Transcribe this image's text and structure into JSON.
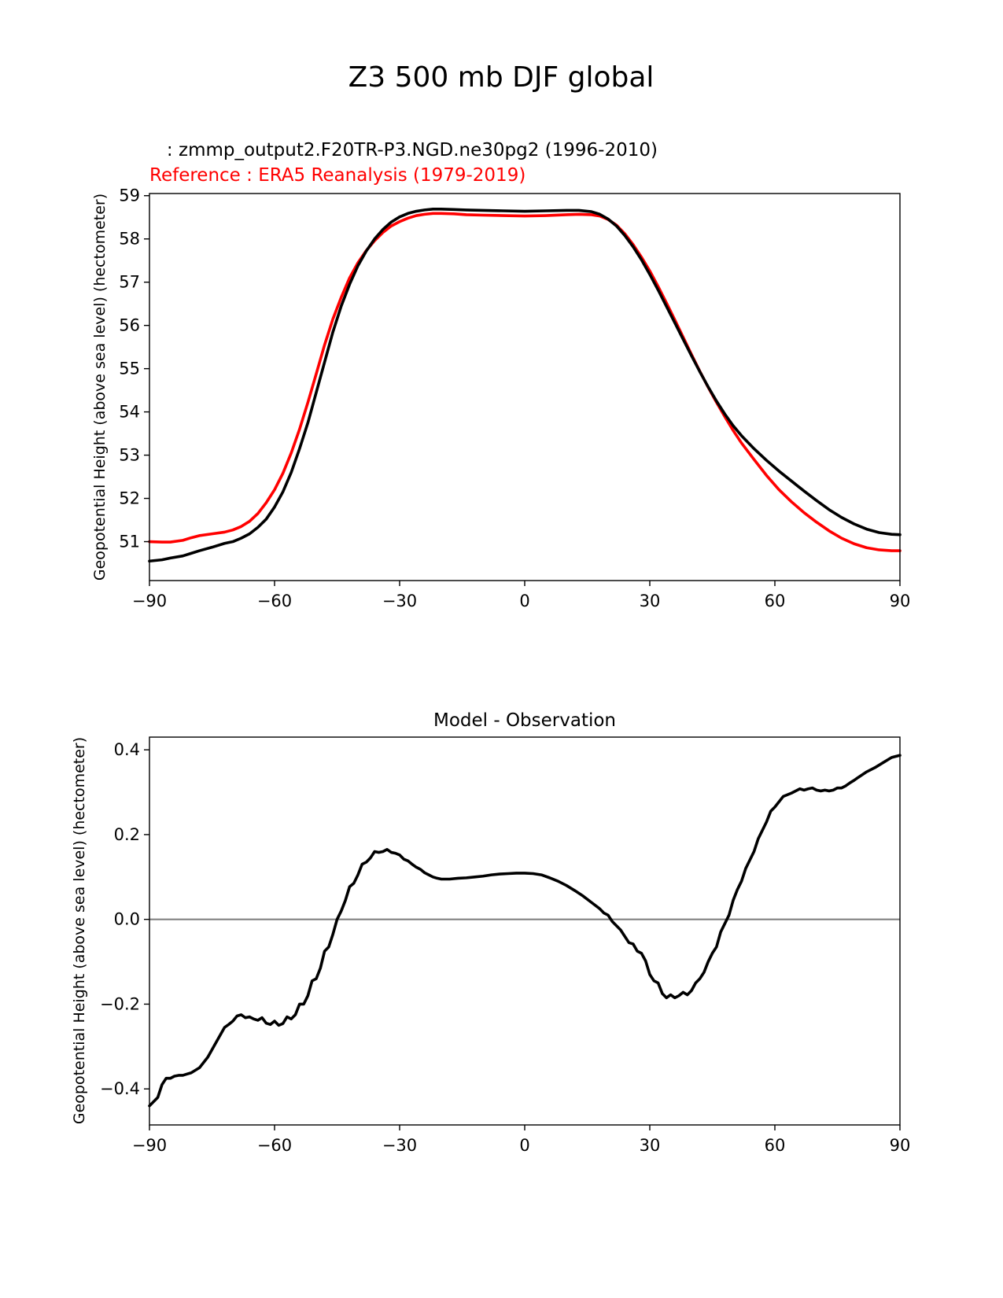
{
  "figure": {
    "title": "Z3 500 mb DJF global"
  },
  "chart_data": [
    {
      "type": "line",
      "test_label": "   : zmmp_output2.F20TR-P3.NGD.ne30pg2 (1996-2010)",
      "ref_label": "Reference : ERA5 Reanalysis (1979-2019)",
      "ref_color": "#ff0000",
      "test_color": "#000000",
      "title": "",
      "xlabel": "",
      "ylabel": "Geopotential Height (above sea level) (hectometer)",
      "xlim": [
        -90,
        90
      ],
      "ylim": [
        50.1,
        59.05
      ],
      "xticks": [
        -90,
        -60,
        -30,
        0,
        30,
        60,
        90
      ],
      "xtick_labels": [
        "−90",
        "−60",
        "−30",
        "0",
        "30",
        "60",
        "90"
      ],
      "yticks": [
        51,
        52,
        53,
        54,
        55,
        56,
        57,
        58,
        59
      ],
      "ytick_labels": [
        "51",
        "52",
        "53",
        "54",
        "55",
        "56",
        "57",
        "58",
        "59"
      ],
      "series": [
        {
          "name": "test",
          "x": [
            -90,
            -87,
            -85,
            -82,
            -80,
            -78,
            -75,
            -72,
            -70,
            -68,
            -66,
            -64,
            -62,
            -60,
            -58,
            -56,
            -54,
            -52,
            -50,
            -48,
            -46,
            -44,
            -42,
            -40,
            -38,
            -36,
            -34,
            -32,
            -30,
            -28,
            -26,
            -24,
            -22,
            -20,
            -17,
            -14,
            -10,
            -5,
            0,
            5,
            10,
            13,
            16,
            18,
            20,
            22,
            24,
            26,
            28,
            30,
            32,
            34,
            36,
            38,
            40,
            42,
            44,
            46,
            48,
            50,
            52,
            55,
            58,
            61,
            64,
            67,
            70,
            73,
            76,
            79,
            82,
            85,
            88,
            90
          ],
          "y": [
            50.55,
            50.58,
            50.62,
            50.67,
            50.73,
            50.79,
            50.87,
            50.96,
            51.0,
            51.08,
            51.18,
            51.33,
            51.52,
            51.8,
            52.15,
            52.6,
            53.15,
            53.75,
            54.45,
            55.15,
            55.85,
            56.45,
            56.95,
            57.38,
            57.72,
            58.0,
            58.22,
            58.39,
            58.51,
            58.59,
            58.64,
            58.67,
            58.69,
            58.69,
            58.68,
            58.67,
            58.66,
            58.65,
            58.64,
            58.65,
            58.66,
            58.66,
            58.63,
            58.57,
            58.46,
            58.3,
            58.08,
            57.82,
            57.52,
            57.18,
            56.82,
            56.44,
            56.06,
            55.68,
            55.3,
            54.93,
            54.58,
            54.25,
            53.95,
            53.68,
            53.45,
            53.15,
            52.88,
            52.63,
            52.4,
            52.17,
            51.95,
            51.74,
            51.56,
            51.41,
            51.29,
            51.21,
            51.17,
            51.16
          ]
        },
        {
          "name": "reference",
          "x": [
            -90,
            -87,
            -85,
            -82,
            -80,
            -78,
            -75,
            -72,
            -70,
            -68,
            -66,
            -64,
            -62,
            -60,
            -58,
            -56,
            -54,
            -52,
            -50,
            -48,
            -46,
            -44,
            -42,
            -40,
            -38,
            -36,
            -34,
            -32,
            -30,
            -28,
            -26,
            -24,
            -22,
            -20,
            -17,
            -14,
            -10,
            -5,
            0,
            5,
            10,
            13,
            16,
            18,
            20,
            22,
            24,
            26,
            28,
            30,
            32,
            34,
            36,
            38,
            40,
            42,
            44,
            46,
            48,
            50,
            52,
            55,
            58,
            61,
            64,
            67,
            70,
            73,
            76,
            79,
            82,
            85,
            88,
            90
          ],
          "y": [
            51.0,
            50.99,
            50.99,
            51.03,
            51.09,
            51.14,
            51.18,
            51.22,
            51.27,
            51.35,
            51.47,
            51.65,
            51.9,
            52.2,
            52.58,
            53.05,
            53.6,
            54.22,
            54.88,
            55.55,
            56.15,
            56.65,
            57.1,
            57.45,
            57.73,
            57.96,
            58.15,
            58.3,
            58.4,
            58.48,
            58.54,
            58.57,
            58.59,
            58.59,
            58.58,
            58.56,
            58.55,
            58.54,
            58.53,
            58.54,
            58.56,
            58.57,
            58.56,
            58.53,
            58.45,
            58.32,
            58.12,
            57.87,
            57.58,
            57.26,
            56.9,
            56.52,
            56.13,
            55.73,
            55.33,
            54.94,
            54.57,
            54.22,
            53.89,
            53.57,
            53.28,
            52.9,
            52.53,
            52.2,
            51.92,
            51.67,
            51.45,
            51.25,
            51.08,
            50.95,
            50.86,
            50.81,
            50.79,
            50.79
          ]
        }
      ]
    },
    {
      "type": "line",
      "title": "Model - Observation",
      "xlabel": "",
      "ylabel": "Geopotential Height (above sea level) (hectometer)",
      "xlim": [
        -90,
        90
      ],
      "ylim": [
        -0.485,
        0.43
      ],
      "xticks": [
        -90,
        -60,
        -30,
        0,
        30,
        60,
        90
      ],
      "xtick_labels": [
        "−90",
        "−60",
        "−30",
        "0",
        "30",
        "60",
        "90"
      ],
      "yticks": [
        -0.4,
        -0.2,
        0.0,
        0.2,
        0.4
      ],
      "ytick_labels": [
        "−0.4",
        "−0.2",
        "0.0",
        "0.2",
        "0.4"
      ],
      "zero_line_color": "#808080",
      "series": [
        {
          "name": "difference",
          "x": [
            -90,
            -88,
            -87,
            -86,
            -85,
            -84,
            -83,
            -82,
            -81,
            -80,
            -78,
            -76,
            -74,
            -72,
            -71,
            -70,
            -69,
            -68,
            -67,
            -66,
            -65,
            -64,
            -63,
            -62,
            -61,
            -60,
            -59,
            -58,
            -57,
            -56,
            -55,
            -54,
            -53,
            -52,
            -51,
            -50,
            -49,
            -48,
            -47,
            -46,
            -45,
            -44,
            -43,
            -42,
            -41,
            -40,
            -39,
            -38,
            -37,
            -36,
            -35,
            -34,
            -33,
            -32,
            -31,
            -30,
            -29,
            -28,
            -27,
            -26,
            -25,
            -24,
            -23,
            -22,
            -21,
            -20,
            -18,
            -16,
            -14,
            -12,
            -10,
            -8,
            -6,
            -4,
            -2,
            0,
            2,
            4,
            6,
            8,
            10,
            12,
            14,
            16,
            18,
            19,
            20,
            21,
            22,
            23,
            24,
            25,
            26,
            27,
            28,
            29,
            30,
            31,
            32,
            33,
            34,
            35,
            36,
            37,
            38,
            39,
            40,
            41,
            42,
            43,
            44,
            45,
            46,
            47,
            48,
            49,
            50,
            51,
            52,
            53,
            54,
            55,
            56,
            57,
            58,
            59,
            60,
            62,
            64,
            66,
            67,
            68,
            69,
            70,
            71,
            72,
            73,
            74,
            75,
            76,
            77,
            78,
            79,
            80,
            82,
            84,
            86,
            88,
            90
          ],
          "y": [
            -0.44,
            -0.42,
            -0.39,
            -0.375,
            -0.375,
            -0.37,
            -0.368,
            -0.368,
            -0.365,
            -0.362,
            -0.35,
            -0.325,
            -0.29,
            -0.255,
            -0.248,
            -0.24,
            -0.228,
            -0.225,
            -0.232,
            -0.23,
            -0.235,
            -0.238,
            -0.232,
            -0.245,
            -0.248,
            -0.24,
            -0.25,
            -0.246,
            -0.23,
            -0.235,
            -0.225,
            -0.2,
            -0.2,
            -0.18,
            -0.145,
            -0.14,
            -0.115,
            -0.075,
            -0.065,
            -0.035,
            0.0,
            0.02,
            0.045,
            0.077,
            0.085,
            0.105,
            0.13,
            0.135,
            0.145,
            0.16,
            0.158,
            0.16,
            0.165,
            0.158,
            0.156,
            0.152,
            0.142,
            0.138,
            0.13,
            0.123,
            0.118,
            0.11,
            0.105,
            0.1,
            0.097,
            0.095,
            0.095,
            0.097,
            0.098,
            0.1,
            0.102,
            0.105,
            0.107,
            0.108,
            0.109,
            0.109,
            0.108,
            0.105,
            0.098,
            0.09,
            0.08,
            0.068,
            0.055,
            0.04,
            0.025,
            0.015,
            0.01,
            -0.005,
            -0.015,
            -0.025,
            -0.04,
            -0.055,
            -0.058,
            -0.075,
            -0.08,
            -0.098,
            -0.13,
            -0.145,
            -0.15,
            -0.175,
            -0.185,
            -0.178,
            -0.185,
            -0.18,
            -0.172,
            -0.178,
            -0.168,
            -0.15,
            -0.14,
            -0.125,
            -0.1,
            -0.08,
            -0.065,
            -0.03,
            -0.01,
            0.01,
            0.045,
            0.07,
            0.09,
            0.12,
            0.14,
            0.16,
            0.19,
            0.21,
            0.23,
            0.255,
            0.265,
            0.29,
            0.298,
            0.308,
            0.305,
            0.308,
            0.31,
            0.305,
            0.303,
            0.305,
            0.303,
            0.305,
            0.31,
            0.31,
            0.315,
            0.322,
            0.328,
            0.335,
            0.348,
            0.358,
            0.37,
            0.382,
            0.387
          ]
        }
      ]
    }
  ]
}
